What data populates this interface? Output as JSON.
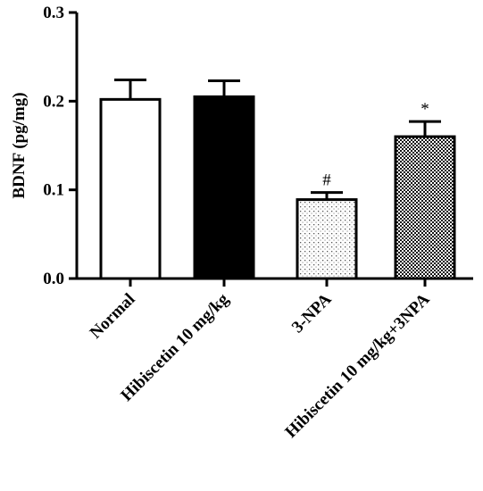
{
  "chart_data": {
    "type": "bar",
    "title": "",
    "xlabel": "",
    "ylabel": "BDNF (pg/mg)",
    "ylim": [
      0,
      0.3
    ],
    "yticks": [
      "0.0",
      "0.1",
      "0.2",
      "0.3"
    ],
    "categories": [
      "Normal",
      "Hibiscetin 10 mg/kg",
      "3-NPA",
      "Hibiscetin 10 mg/kg+3NPA"
    ],
    "values": [
      0.202,
      0.205,
      0.089,
      0.16
    ],
    "errors": [
      0.022,
      0.018,
      0.008,
      0.017
    ],
    "annotations": [
      "",
      "",
      "#",
      "*"
    ],
    "fills": [
      "white",
      "black",
      "dots",
      "checker"
    ],
    "grid": false,
    "legend": "none"
  }
}
